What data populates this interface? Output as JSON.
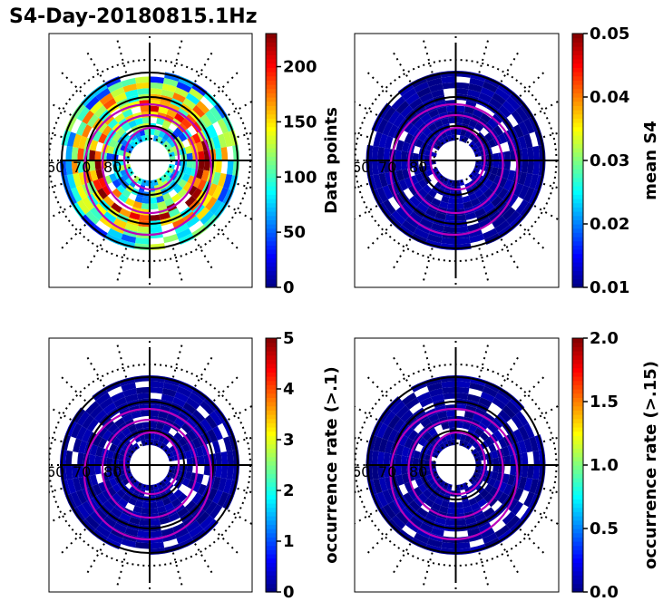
{
  "page_title": "S4-Day-20180815.1Hz",
  "colormap": [
    "#00007f",
    "#0000ff",
    "#007fff",
    "#00ffff",
    "#7fff7f",
    "#ffff00",
    "#ff7f00",
    "#ff0000",
    "#7f0000"
  ],
  "colors": {
    "contour": "#bb00bb",
    "grid": "#000000",
    "data_bg": "#00008f"
  },
  "chart_data": [
    {
      "type": "heatmap",
      "projection": "polar",
      "lat_labels": [
        "60",
        "70",
        "80"
      ],
      "colorbar": {
        "label": "Data points",
        "range": [
          0,
          230
        ],
        "ticks": [
          "0",
          "50",
          "100",
          "150",
          "200"
        ],
        "tick_values": [
          0,
          50,
          100,
          150,
          200
        ]
      }
    },
    {
      "type": "heatmap",
      "projection": "polar",
      "lat_labels": [
        "60",
        "70",
        "80"
      ],
      "colorbar": {
        "label": "mean S4",
        "range": [
          0.01,
          0.05
        ],
        "ticks": [
          "0.01",
          "0.02",
          "0.03",
          "0.04",
          "0.05"
        ],
        "tick_values": [
          0.01,
          0.02,
          0.03,
          0.04,
          0.05
        ]
      }
    },
    {
      "type": "heatmap",
      "projection": "polar",
      "lat_labels": [
        "60",
        "70",
        "80"
      ],
      "colorbar": {
        "label": "occurrence rate (>.1)",
        "range": [
          0,
          5
        ],
        "ticks": [
          "0",
          "1",
          "2",
          "3",
          "4",
          "5"
        ],
        "tick_values": [
          0,
          1,
          2,
          3,
          4,
          5
        ]
      }
    },
    {
      "type": "heatmap",
      "projection": "polar",
      "lat_labels": [
        "60",
        "70",
        "80"
      ],
      "colorbar": {
        "label": "occurrence rate (>.15)",
        "range": [
          0,
          2.0
        ],
        "ticks": [
          "0.0",
          "0.5",
          "1.0",
          "1.5",
          "2.0"
        ],
        "tick_values": [
          0,
          0.5,
          1.0,
          1.5,
          2.0
        ]
      }
    }
  ]
}
